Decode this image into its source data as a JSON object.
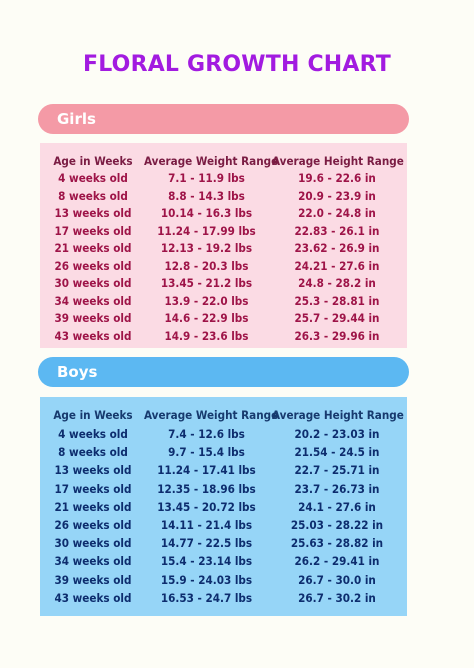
{
  "title": "FLORAL GROWTH CHART",
  "girls": {
    "label": "Girls",
    "headers": [
      "Age in Weeks",
      "Average Weight Range",
      "Average Height Range"
    ],
    "rows": [
      [
        "4 weeks old",
        "7.1 - 11.9 lbs",
        "19.6 - 22.6 in"
      ],
      [
        "8 weeks old",
        "8.8 - 14.3 lbs",
        "20.9 - 23.9 in"
      ],
      [
        "13 weeks old",
        "10.14 - 16.3 lbs",
        "22.0 - 24.8 in"
      ],
      [
        "17 weeks old",
        "11.24 - 17.99 lbs",
        "22.83 - 26.1 in"
      ],
      [
        "21 weeks old",
        "12.13 - 19.2 lbs",
        "23.62 - 26.9 in"
      ],
      [
        "26 weeks old",
        "12.8 - 20.3 lbs",
        "24.21 - 27.6 in"
      ],
      [
        "30 weeks old",
        "13.45 - 21.2 lbs",
        "24.8 - 28.2 in"
      ],
      [
        "34 weeks old",
        "13.9 - 22.0 lbs",
        "25.3 - 28.81 in"
      ],
      [
        "39 weeks old",
        "14.6 - 22.9 lbs",
        "25.7 - 29.44 in"
      ],
      [
        "43 weeks old",
        "14.9 - 23.6 lbs",
        "26.3 - 29.96 in"
      ]
    ]
  },
  "boys": {
    "label": "Boys",
    "headers": [
      "Age in Weeks",
      "Average Weight Range",
      "Average Height Range"
    ],
    "rows": [
      [
        "4 weeks old",
        "7.4 - 12.6 lbs",
        "20.2 - 23.03 in"
      ],
      [
        "8 weeks old",
        "9.7 - 15.4 lbs",
        "21.54 - 24.5 in"
      ],
      [
        "13 weeks old",
        "11.24 - 17.41 lbs",
        "22.7 - 25.71 in"
      ],
      [
        "17 weeks old",
        "12.35 - 18.96 lbs",
        "23.7 - 26.73 in"
      ],
      [
        "21 weeks old",
        "13.45 - 20.72 lbs",
        "24.1 - 27.6 in"
      ],
      [
        "26 weeks old",
        "14.11 - 21.4 lbs",
        "25.03 - 28.22 in"
      ],
      [
        "30 weeks old",
        "14.77 - 22.5 lbs",
        "25.63 - 28.82 in"
      ],
      [
        "34 weeks old",
        "15.4 - 23.14 lbs",
        "26.2 - 29.41 in"
      ],
      [
        "39 weeks old",
        "15.9 - 24.03 lbs",
        "26.7 - 30.0 in"
      ],
      [
        "43 weeks old",
        "16.53 - 24.7 lbs",
        "26.7 - 30.2 in"
      ]
    ]
  },
  "colors": {
    "title": "#a21be0",
    "girls_pill": "#f49aa6",
    "girls_panel": "#fbdbe4",
    "girls_text": "#9e1448",
    "boys_pill": "#5cb8f2",
    "boys_panel": "#96d5f7",
    "boys_text": "#0d2d6e",
    "background": "#fdfdf6"
  }
}
